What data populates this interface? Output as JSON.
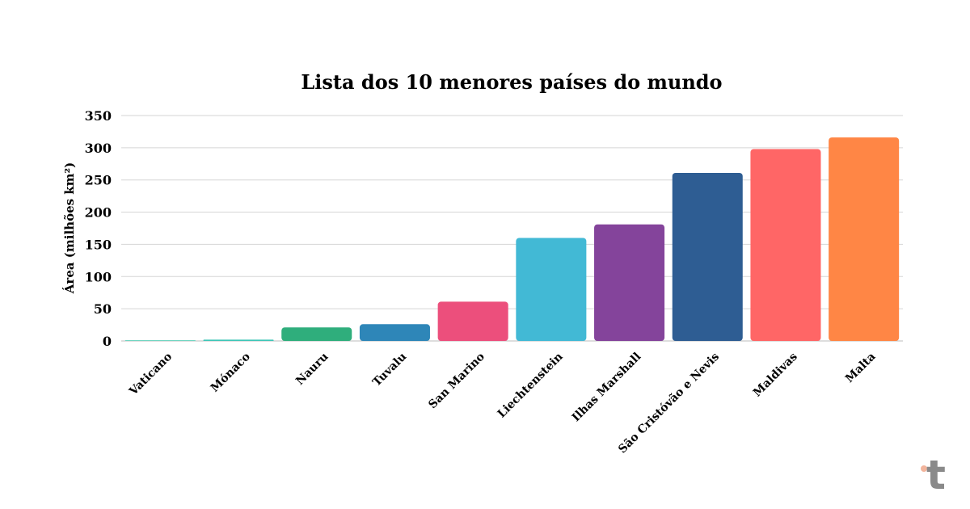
{
  "chart_data": {
    "type": "bar",
    "title": "Lista dos 10 menores países do mundo",
    "xlabel": "",
    "ylabel": "Área (milhões km²)",
    "ylim": [
      0,
      350
    ],
    "yticks": [
      0,
      50,
      100,
      150,
      200,
      250,
      300,
      350
    ],
    "grid": true,
    "categories": [
      "Vaticano",
      "Mónaco",
      "Nauru",
      "Tuvalu",
      "San Marino",
      "Liechtenstein",
      "Ilhas Marshall",
      "São Cristóvão e Nevis",
      "Maldivas",
      "Malta"
    ],
    "values": [
      0.44,
      2,
      21,
      26,
      61,
      160,
      181,
      261,
      298,
      316
    ],
    "colors": [
      "#1abc9c",
      "#3ec6b7",
      "#2fae7c",
      "#2e86b8",
      "#ec4f7c",
      "#42b9d5",
      "#84449b",
      "#2e5d93",
      "#ff6666",
      "#ff8645"
    ]
  },
  "brand": {
    "logo_letter": "t",
    "logo_color": "#8a8a8a",
    "logo_dot_color": "#f2b49c"
  }
}
